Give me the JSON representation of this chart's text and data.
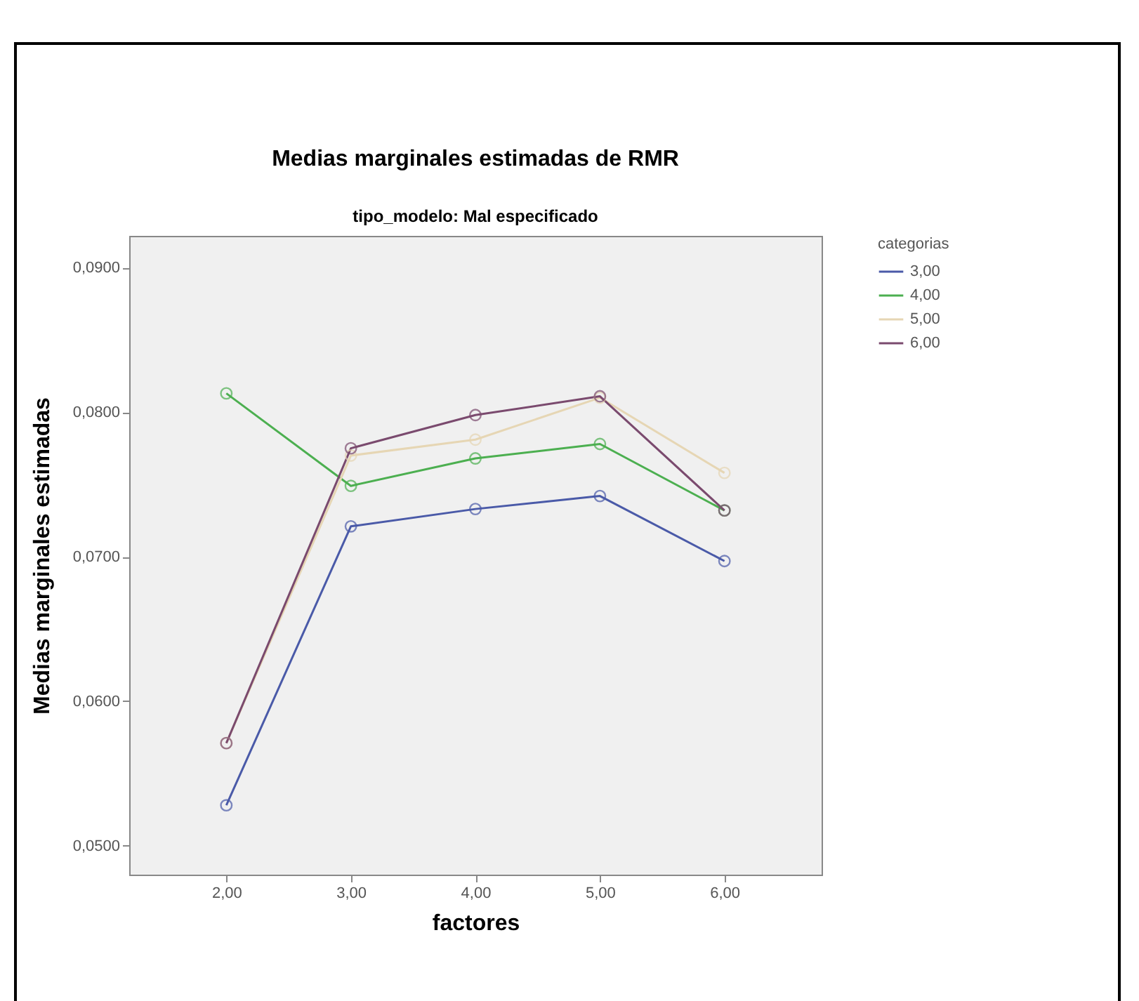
{
  "chart_data": {
    "type": "line",
    "title": "Medias marginales estimadas de RMR",
    "subtitle": "tipo_modelo: Mal especificado",
    "xlabel": "factores",
    "ylabel": "Medias marginales estimadas",
    "legend_title": "categorias",
    "categories": [
      "2,00",
      "3,00",
      "4,00",
      "5,00",
      "6,00"
    ],
    "series": [
      {
        "name": "3,00",
        "color": "#4a5aa8",
        "values": [
          0.0528,
          0.0721,
          0.0733,
          0.0742,
          0.0697
        ]
      },
      {
        "name": "4,00",
        "color": "#4caf50",
        "values": [
          0.0813,
          0.0749,
          0.0768,
          0.0778,
          0.0732
        ]
      },
      {
        "name": "5,00",
        "color": "#e6d6b4",
        "values": [
          0.0571,
          0.077,
          0.0781,
          0.081,
          0.0758
        ]
      },
      {
        "name": "6,00",
        "color": "#7a4a6e",
        "values": [
          0.0571,
          0.0775,
          0.0798,
          0.0811,
          0.0732
        ]
      }
    ],
    "ylim": [
      0.048,
      0.0922
    ],
    "yticks": [
      {
        "value": 0.05,
        "label": "0,0500"
      },
      {
        "value": 0.06,
        "label": "0,0600"
      },
      {
        "value": 0.07,
        "label": "0,0700"
      },
      {
        "value": 0.08,
        "label": "0,0800"
      },
      {
        "value": 0.09,
        "label": "0,0900"
      }
    ],
    "grid": false,
    "legend": "right",
    "marker": "circle"
  }
}
